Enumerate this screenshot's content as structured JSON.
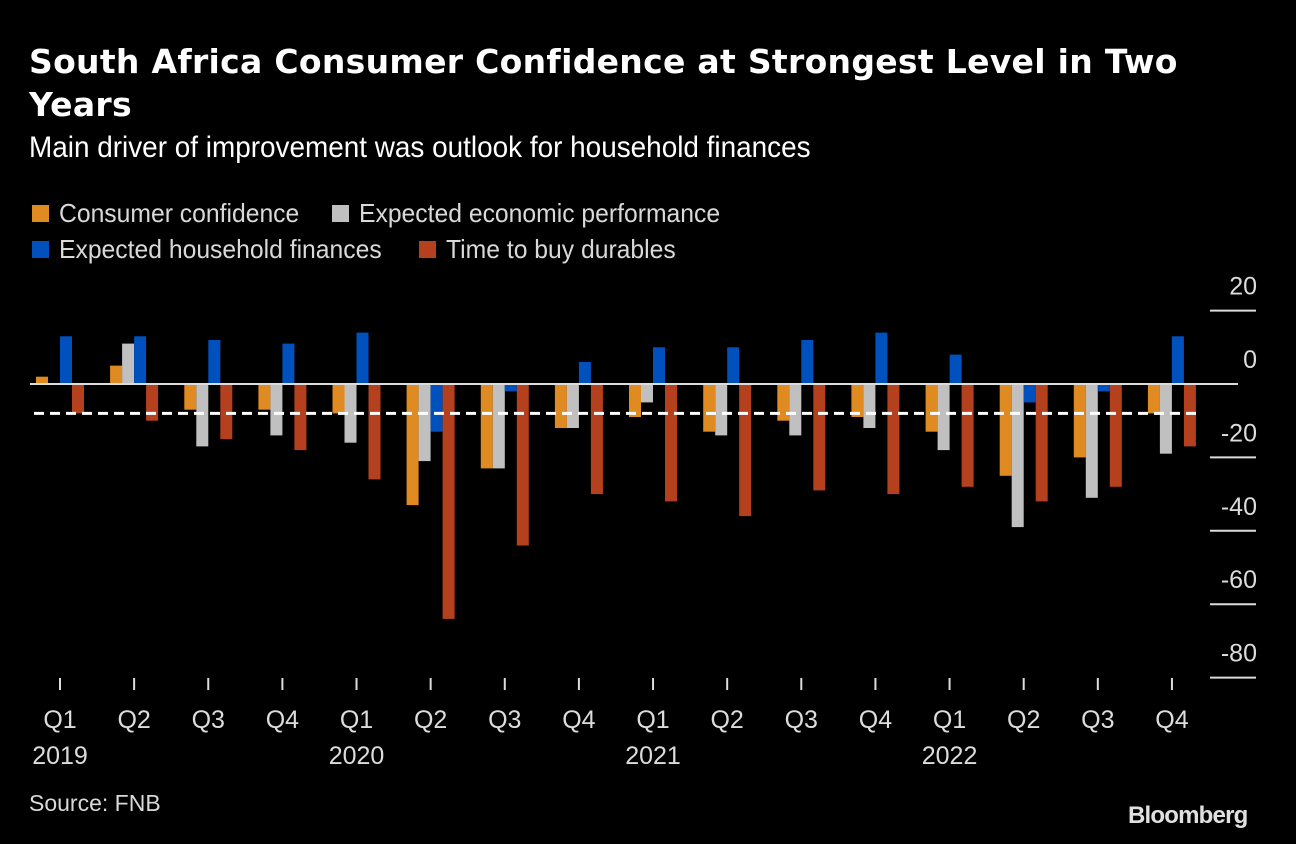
{
  "header": {
    "title": "South Africa Consumer Confidence at Strongest Level in Two Years",
    "subtitle": "Main driver of improvement was outlook for household finances"
  },
  "legend": [
    {
      "label": "Consumer confidence",
      "color": "#E08A22"
    },
    {
      "label": "Expected economic performance",
      "color": "#C0C0C0"
    },
    {
      "label": "Expected household finances",
      "color": "#0050BE"
    },
    {
      "label": "Time to buy durables",
      "color": "#B5401E"
    }
  ],
  "footer": {
    "source": "Source: FNB",
    "brand": "Bloomberg"
  },
  "chart_data": {
    "type": "bar",
    "title": "South Africa Consumer Confidence at Strongest Level in Two Years",
    "subtitle": "Main driver of improvement was outlook for household finances",
    "categories": [
      "Q1 2019",
      "Q2 2019",
      "Q3 2019",
      "Q4 2019",
      "Q1 2020",
      "Q2 2020",
      "Q3 2020",
      "Q4 2020",
      "Q1 2021",
      "Q2 2021",
      "Q3 2021",
      "Q4 2021",
      "Q1 2022",
      "Q2 2022",
      "Q3 2022",
      "Q4 2022"
    ],
    "tick_labels": [
      "Q1",
      "Q2",
      "Q3",
      "Q4",
      "Q1",
      "Q2",
      "Q3",
      "Q4",
      "Q1",
      "Q2",
      "Q3",
      "Q4",
      "Q1",
      "Q2",
      "Q3",
      "Q4"
    ],
    "year_labels": [
      {
        "index": 0,
        "label": "2019"
      },
      {
        "index": 4,
        "label": "2020"
      },
      {
        "index": 8,
        "label": "2021"
      },
      {
        "index": 12,
        "label": "2022"
      }
    ],
    "series": [
      {
        "name": "Consumer confidence",
        "color": "#E08A22",
        "values": [
          2,
          5,
          -7,
          -7,
          -8,
          -33,
          -23,
          -12,
          -9,
          -13,
          -10,
          -9,
          -13,
          -25,
          -20,
          -8
        ]
      },
      {
        "name": "Expected economic performance",
        "color": "#C0C0C0",
        "values": [
          0,
          11,
          -17,
          -14,
          -16,
          -21,
          -23,
          -12,
          -5,
          -14,
          -14,
          -12,
          -18,
          -39,
          -31,
          -19
        ]
      },
      {
        "name": "Expected household finances",
        "color": "#0050BE",
        "values": [
          13,
          13,
          12,
          11,
          14,
          -13,
          -2,
          6,
          10,
          10,
          12,
          14,
          8,
          -5,
          -2,
          13
        ]
      },
      {
        "name": "Time to buy durables",
        "color": "#B5401E",
        "values": [
          -8,
          -10,
          -15,
          -18,
          -26,
          -64,
          -44,
          -30,
          -32,
          -36,
          -29,
          -30,
          -28,
          -32,
          -28,
          -17
        ]
      }
    ],
    "reference_line": {
      "value": -8,
      "style": "dashed",
      "color": "#FFFFFF"
    },
    "yticks": [
      20,
      0,
      -20,
      -40,
      -60,
      -80
    ],
    "ylim": [
      -82,
      20
    ],
    "y_axis_side": "right",
    "legend_position": "top-left",
    "xlabel": "",
    "ylabel": "",
    "grid": false
  }
}
